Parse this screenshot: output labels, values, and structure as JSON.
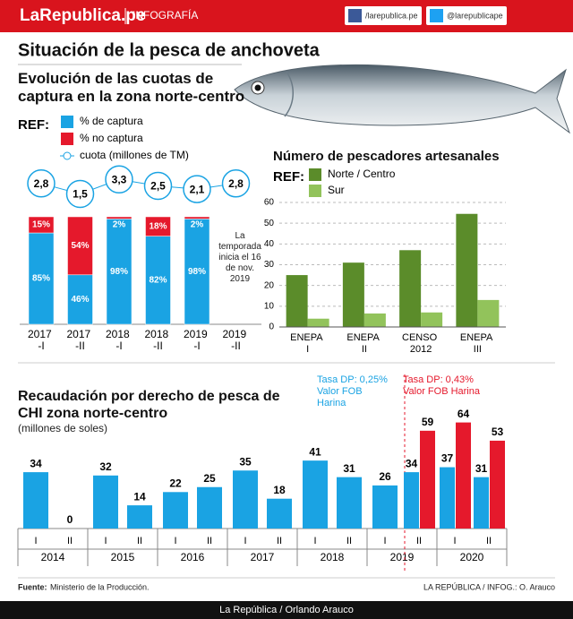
{
  "header": {
    "logo": "LaRepublica.pe",
    "section": "INFOGRAFÍA",
    "facebook": "/larepublica.pe",
    "twitter": "@larepublicape"
  },
  "title": "Situación de la pesca de anchoveta",
  "chart_data": [
    {
      "type": "stacked_bar_line",
      "title": "Evolución de las cuotas de captura en la zona norte-centro",
      "legend_title": "REF:",
      "categories": [
        "2017 -I",
        "2017 -II",
        "2018 -I",
        "2018 -II",
        "2019 -I",
        "2019 -II"
      ],
      "series": [
        {
          "name": "% de captura",
          "color": "#1aa3e3",
          "values": [
            85,
            46,
            98,
            82,
            98,
            null
          ],
          "value_labels": [
            "85%",
            "46%",
            "98%",
            "82%",
            "98%",
            null
          ]
        },
        {
          "name": "% no captura",
          "color": "#e5192c",
          "values": [
            15,
            54,
            2,
            18,
            2,
            null
          ],
          "value_labels": [
            "15%",
            "54%",
            "2%",
            "18%",
            "2%",
            null
          ]
        },
        {
          "name": "cuota (millones de TM)",
          "type": "line",
          "color": "#1aa3e3",
          "values": [
            2.8,
            1.5,
            3.3,
            2.5,
            2.1,
            2.8
          ],
          "value_labels": [
            "2,8",
            "1,5",
            "3,3",
            "2,5",
            "2,1",
            "2,8"
          ]
        }
      ],
      "annotation": "La temporada inicia el 16 de nov. 2019"
    },
    {
      "type": "bar",
      "title": "Número de pescadores artesanales",
      "legend_title": "REF:",
      "categories": [
        "ENEPA I",
        "ENEPA II",
        "CENSO 2012",
        "ENEPA III"
      ],
      "series": [
        {
          "name": "Norte / Centro",
          "color": "#5b8c2a",
          "values": [
            25,
            31,
            37,
            54.5
          ]
        },
        {
          "name": "Sur",
          "color": "#92c35b",
          "values": [
            4,
            6.5,
            7,
            13
          ]
        }
      ],
      "ylim": [
        0,
        60
      ],
      "yticks": [
        0,
        10,
        20,
        30,
        40,
        50,
        60
      ],
      "grid": true
    },
    {
      "type": "grouped_bar",
      "title": "Recaudación por derecho de pesca de CHI zona norte-centro",
      "subtitle": "(millones de soles)",
      "categories": [
        "I",
        "II",
        "I",
        "II",
        "I",
        "II",
        "I",
        "II",
        "I",
        "II",
        "I",
        "II",
        "I",
        "II"
      ],
      "groups": [
        "2014",
        "2015",
        "2016",
        "2017",
        "2018",
        "2019",
        "2020"
      ],
      "series": [
        {
          "color": "#1aa3e3",
          "values": [
            34,
            0,
            32,
            14,
            22,
            25,
            35,
            18,
            41,
            31,
            26,
            34,
            37,
            31
          ]
        },
        {
          "color": "#e5192c",
          "values": [
            null,
            null,
            null,
            null,
            null,
            null,
            null,
            null,
            null,
            null,
            null,
            59,
            64,
            53
          ]
        }
      ],
      "annotations": [
        {
          "text": "Tasa DP: 0,25% Valor FOB Harina",
          "color": "#1aa3e3"
        },
        {
          "text": "Tasa DP: 0,43% Valor FOB Harina",
          "color": "#e5192c"
        }
      ]
    }
  ],
  "footer": {
    "source_label": "Fuente:",
    "source": "Ministerio de la Producción.",
    "credit": "LA REPÚBLICA / INFOG.: O. Arauco",
    "bar": "La República / Orlando Arauco"
  }
}
